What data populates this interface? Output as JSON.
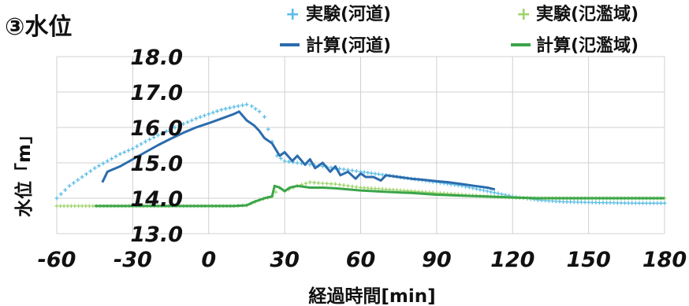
{
  "chart_data": {
    "type": "line",
    "title": "③水位",
    "xlabel": "経過時間[min]",
    "ylabel": "水位「m」",
    "xlim": [
      -60,
      180
    ],
    "ylim": [
      13.0,
      18.0
    ],
    "x_ticks": [
      "-60",
      "-30",
      "0",
      "30",
      "60",
      "90",
      "120",
      "150",
      "180"
    ],
    "y_ticks": [
      "18.0",
      "17.0",
      "16.0",
      "15.0",
      "14.0",
      "13.0"
    ],
    "grid": true,
    "legend_position": "top",
    "series": [
      {
        "name": "実験(河道)",
        "style": "markers",
        "marker": "+",
        "color": "#5bbde6",
        "x": [
          -60,
          -55,
          -50,
          -45,
          -40,
          -35,
          -30,
          -25,
          -20,
          -15,
          -10,
          -5,
          0,
          5,
          10,
          15,
          17,
          20,
          22,
          25,
          27,
          30,
          35,
          40,
          45,
          50,
          55,
          60,
          70,
          80,
          90,
          100,
          110,
          120,
          130,
          140,
          150,
          160,
          170,
          180
        ],
        "y": [
          14.0,
          14.35,
          14.6,
          14.85,
          15.05,
          15.25,
          15.4,
          15.6,
          15.78,
          15.95,
          16.1,
          16.25,
          16.38,
          16.5,
          16.58,
          16.65,
          16.6,
          16.45,
          16.3,
          15.6,
          15.2,
          15.05,
          15.0,
          14.95,
          14.9,
          14.85,
          14.8,
          14.75,
          14.65,
          14.55,
          14.45,
          14.35,
          14.2,
          14.05,
          13.95,
          13.9,
          13.88,
          13.87,
          13.86,
          13.86
        ]
      },
      {
        "name": "計算(河道)",
        "style": "line",
        "color": "#2b6cad",
        "x": [
          -42,
          -40,
          -35,
          -30,
          -25,
          -20,
          -15,
          -10,
          -5,
          0,
          5,
          10,
          12,
          15,
          18,
          20,
          22,
          25,
          28,
          30,
          33,
          35,
          38,
          40,
          42,
          45,
          48,
          50,
          52,
          55,
          58,
          60,
          62,
          65,
          68,
          70,
          75,
          80,
          85,
          90,
          95,
          100,
          105,
          110,
          113
        ],
        "y": [
          14.45,
          14.75,
          14.9,
          15.1,
          15.3,
          15.5,
          15.68,
          15.85,
          16.0,
          16.12,
          16.25,
          16.38,
          16.45,
          16.2,
          16.05,
          15.9,
          15.7,
          15.55,
          15.2,
          15.3,
          15.05,
          15.2,
          14.95,
          15.1,
          14.85,
          15.0,
          14.75,
          14.9,
          14.65,
          14.75,
          14.55,
          14.7,
          14.6,
          14.6,
          14.5,
          14.65,
          14.6,
          14.55,
          14.52,
          14.48,
          14.45,
          14.4,
          14.35,
          14.3,
          14.25
        ]
      },
      {
        "name": "実験(氾濫域)",
        "style": "markers",
        "marker": "+",
        "color": "#9fd36a",
        "x": [
          -60,
          -50,
          -40,
          -30,
          -20,
          -10,
          0,
          10,
          15,
          20,
          25,
          28,
          30,
          35,
          40,
          45,
          50,
          55,
          60,
          70,
          80,
          90,
          100,
          110,
          120,
          130,
          140,
          150,
          160,
          170,
          180
        ],
        "y": [
          13.78,
          13.78,
          13.78,
          13.78,
          13.78,
          13.78,
          13.78,
          13.78,
          13.8,
          13.95,
          14.05,
          14.3,
          14.2,
          14.35,
          14.45,
          14.42,
          14.4,
          14.35,
          14.3,
          14.25,
          14.2,
          14.15,
          14.1,
          14.05,
          14.02,
          14.0,
          14.0,
          14.0,
          14.0,
          14.0,
          14.0
        ]
      },
      {
        "name": "計算(氾濫域)",
        "style": "line",
        "color": "#3aa54a",
        "x": [
          -45,
          -30,
          -20,
          -10,
          0,
          10,
          15,
          18,
          22,
          25,
          26,
          28,
          30,
          32,
          35,
          40,
          45,
          50,
          55,
          60,
          70,
          80,
          90,
          100,
          110,
          120,
          130,
          140,
          150,
          160,
          170,
          180
        ],
        "y": [
          13.78,
          13.78,
          13.78,
          13.78,
          13.78,
          13.78,
          13.8,
          13.9,
          14.0,
          14.05,
          14.35,
          14.3,
          14.2,
          14.3,
          14.35,
          14.3,
          14.3,
          14.28,
          14.25,
          14.22,
          14.18,
          14.15,
          14.1,
          14.07,
          14.05,
          14.02,
          14.0,
          14.0,
          14.0,
          14.0,
          14.0,
          14.0
        ]
      }
    ]
  }
}
